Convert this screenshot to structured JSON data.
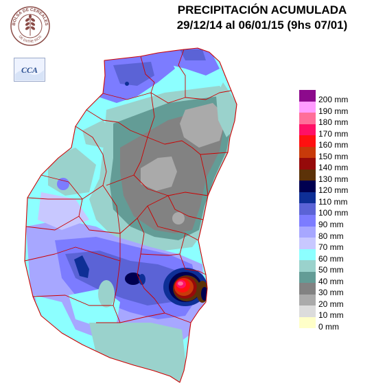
{
  "header": {
    "title": "PRECIPITACIÓN ACUMULADA",
    "period": "29/12/14 al 06/01/15 (9hs 07/01)"
  },
  "logos": {
    "bolsa": {
      "icon": "bolsa-de-cereales-seal-icon",
      "text_top": "BOLSA DE CEREALES",
      "text_bottom": "DE ENTRE RIOS",
      "color": "#8a4b46"
    },
    "cca": {
      "icon": "cca-logo-icon",
      "text": "CCA",
      "color": "#2a4f90"
    }
  },
  "legend": {
    "items": [
      {
        "label": "200 mm",
        "value": 200,
        "color": "#8c0a8c"
      },
      {
        "label": "190 mm",
        "value": 190,
        "color": "#ff9cff"
      },
      {
        "label": "180 mm",
        "value": 180,
        "color": "#ff6e99"
      },
      {
        "label": "170 mm",
        "value": 170,
        "color": "#ff1066"
      },
      {
        "label": "160 mm",
        "value": 160,
        "color": "#ff1010"
      },
      {
        "label": "150 mm",
        "value": 150,
        "color": "#c83a0a"
      },
      {
        "label": "140 mm",
        "value": 140,
        "color": "#960a0a"
      },
      {
        "label": "130 mm",
        "value": 130,
        "color": "#5c3208"
      },
      {
        "label": "120 mm",
        "value": 120,
        "color": "#000050"
      },
      {
        "label": "110 mm",
        "value": 110,
        "color": "#0e2f96"
      },
      {
        "label": "100 mm",
        "value": 100,
        "color": "#5b63d6"
      },
      {
        "label": "90 mm",
        "value": 90,
        "color": "#7c7cff"
      },
      {
        "label": "80 mm",
        "value": 80,
        "color": "#a7a7ff"
      },
      {
        "label": "70 mm",
        "value": 70,
        "color": "#c8c8ff"
      },
      {
        "label": "60 mm",
        "value": 60,
        "color": "#8cffff"
      },
      {
        "label": "50 mm",
        "value": 50,
        "color": "#9ad2cc"
      },
      {
        "label": "40 mm",
        "value": 40,
        "color": "#639c96"
      },
      {
        "label": "30 mm",
        "value": 30,
        "color": "#828282"
      },
      {
        "label": "20 mm",
        "value": 20,
        "color": "#aaaaaa"
      },
      {
        "label": "10 mm",
        "value": 10,
        "color": "#dcdcdc"
      },
      {
        "label": "0 mm",
        "value": 0,
        "color": "#ffffc8"
      }
    ]
  },
  "map": {
    "region": "Entre Ríos",
    "boundary_color": "#cc0000"
  }
}
